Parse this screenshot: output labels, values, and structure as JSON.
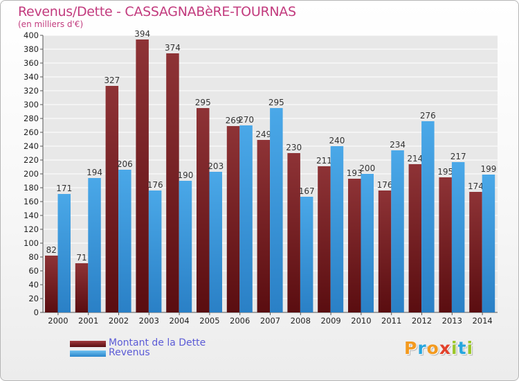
{
  "title": "Revenus/Dette - CASSAGNABèRE-TOURNAS",
  "subtitle": "(en milliers d'€)",
  "logo": {
    "letters": [
      "P",
      "r",
      "o",
      "x",
      "i",
      "t",
      "i"
    ],
    "colors": [
      "#f39a1f",
      "#27a6de",
      "#f39a1f",
      "#e2412b",
      "#9bc62a",
      "#27a6de",
      "#9bc62a"
    ]
  },
  "colors": {
    "title": "#c23b7e",
    "dette": "#7b2629",
    "revenus": "#3a98dc",
    "legend_text": "#5b5bd6"
  },
  "chart_data": {
    "type": "bar",
    "categories": [
      "2000",
      "2001",
      "2002",
      "2003",
      "2004",
      "2005",
      "2006",
      "2007",
      "2008",
      "2009",
      "2010",
      "2011",
      "2012",
      "2013",
      "2014"
    ],
    "series": [
      {
        "name": "Montant de la Dette",
        "values": [
          82,
          71,
          327,
          394,
          374,
          295,
          269,
          249,
          230,
          211,
          193,
          176,
          214,
          195,
          174
        ]
      },
      {
        "name": "Revenus",
        "values": [
          171,
          194,
          206,
          176,
          190,
          203,
          270,
          295,
          167,
          240,
          200,
          234,
          276,
          217,
          199
        ]
      }
    ],
    "ylim": [
      0,
      400
    ],
    "yticks": [
      0,
      20,
      40,
      60,
      80,
      100,
      120,
      140,
      160,
      180,
      200,
      220,
      240,
      260,
      280,
      300,
      320,
      340,
      360,
      380,
      400
    ],
    "grid": true,
    "legend_position": "bottom-left"
  }
}
